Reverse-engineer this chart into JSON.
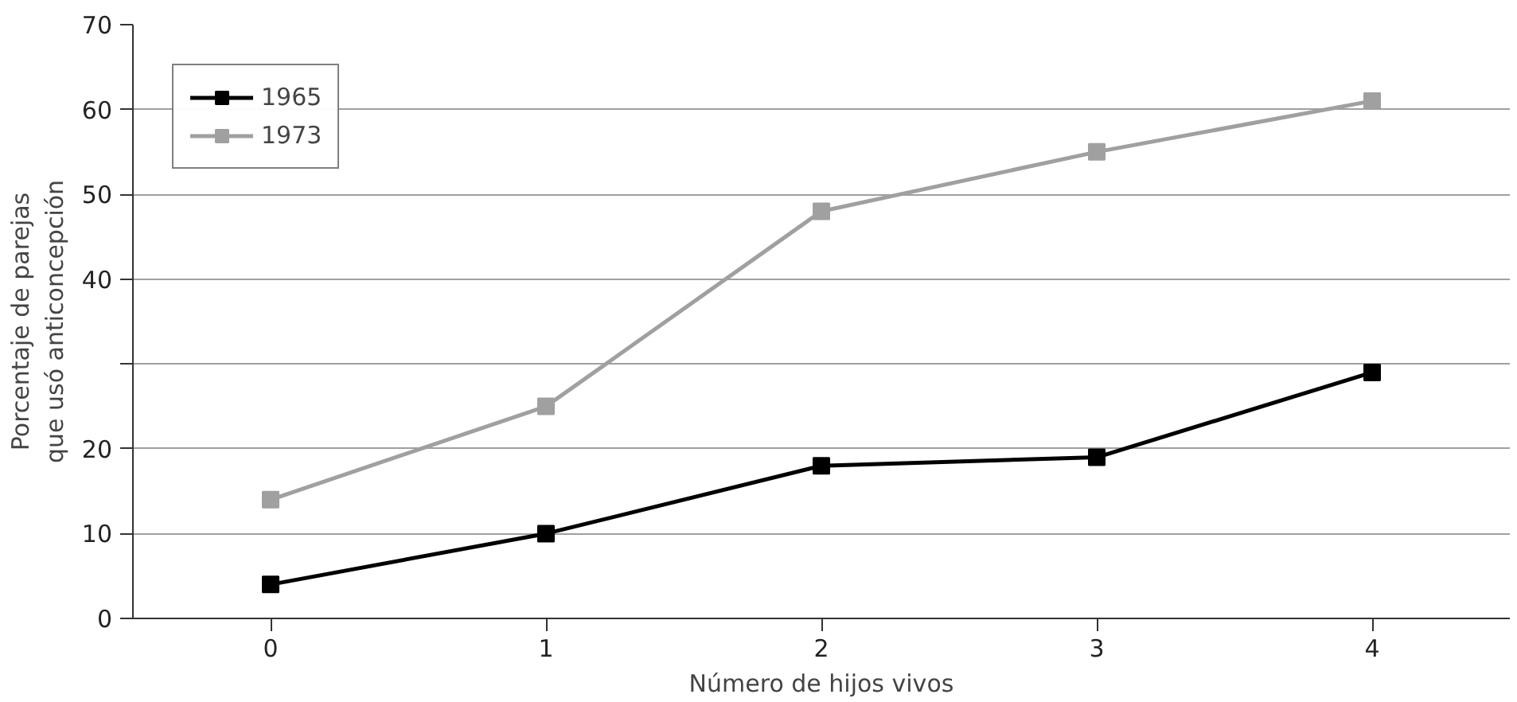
{
  "chart_data": {
    "type": "line",
    "xlabel": "Número de hijos vivos",
    "ylabel": "Porcentaje de parejas\nque usó anticoncepción",
    "categories": [
      "0",
      "1",
      "2",
      "3",
      "4"
    ],
    "series": [
      {
        "name": "1965",
        "color": "#000000",
        "values": [
          4,
          10,
          18,
          19,
          29
        ]
      },
      {
        "name": "1973",
        "color": "#a0a0a0",
        "values": [
          14,
          25,
          48,
          55,
          61
        ]
      }
    ],
    "ylim": [
      0,
      70
    ],
    "yticks": [
      0,
      10,
      20,
      {
        "value": 30,
        "label": null
      },
      40,
      50,
      60,
      70
    ],
    "grid": "y",
    "legend": "top left",
    "marker": "square",
    "line_style": "solid"
  }
}
